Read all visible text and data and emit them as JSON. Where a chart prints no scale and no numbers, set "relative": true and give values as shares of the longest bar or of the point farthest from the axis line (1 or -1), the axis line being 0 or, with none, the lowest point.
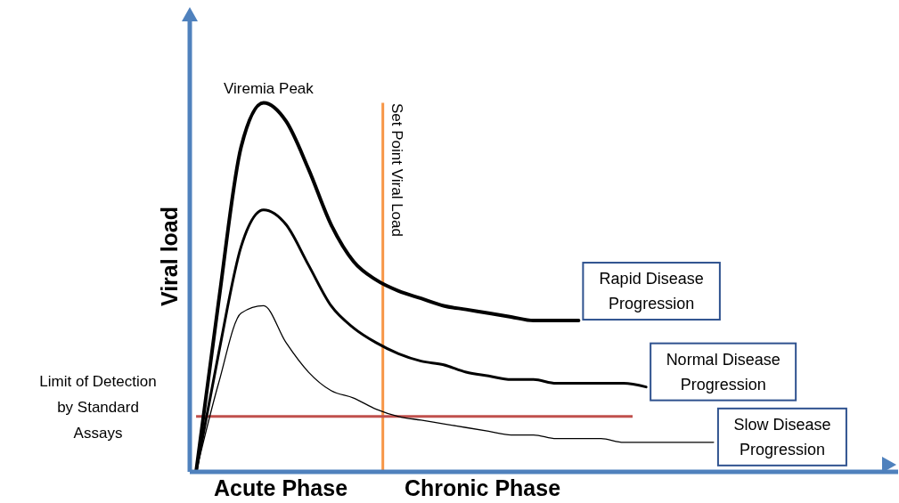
{
  "chart_data": {
    "type": "line",
    "relative": true,
    "ylabel": "Viral load",
    "categories": [
      null,
      null,
      null,
      null,
      null,
      null,
      null,
      null,
      null,
      null,
      null,
      null,
      null,
      null,
      null,
      null,
      null,
      null,
      null,
      null,
      null,
      null,
      null,
      null
    ],
    "series": [
      {
        "name": "Rapid Disease Progression",
        "color": "#000000",
        "values": [
          0,
          0.46,
          0.88,
          1,
          0.95,
          0.82,
          0.67,
          0.57,
          0.52,
          0.49,
          0.47,
          0.45,
          0.44,
          0.43,
          0.42,
          0.41,
          0.41,
          0.41,
          null,
          null,
          null,
          null,
          null,
          null
        ]
      },
      {
        "name": "Normal Disease Progression",
        "color": "#000000",
        "values": [
          0,
          0.32,
          0.61,
          0.71,
          0.67,
          0.56,
          0.45,
          0.39,
          0.35,
          0.32,
          0.3,
          0.29,
          0.27,
          0.26,
          0.25,
          0.25,
          0.24,
          0.24,
          0.24,
          0.24,
          0.23,
          null,
          null,
          null
        ]
      },
      {
        "name": "Slow Disease Progression",
        "color": "#000000",
        "values": [
          0,
          0.24,
          0.43,
          0.45,
          0.35,
          0.27,
          0.22,
          0.2,
          0.17,
          0.15,
          0.14,
          0.13,
          0.12,
          0.11,
          0.1,
          0.1,
          0.09,
          0.09,
          0.09,
          0.08,
          0.08,
          0.08,
          0.08,
          0.08
        ]
      }
    ],
    "ref_lines": [
      {
        "axis": "y",
        "value": 0.15,
        "label": "Limit of Detection by Standard Assays",
        "color": "#c0504d"
      }
    ],
    "annotations": [
      "Viremia Peak",
      "Acute Phase",
      "Chronic Phase",
      "Set Point Viral Load"
    ]
  }
}
